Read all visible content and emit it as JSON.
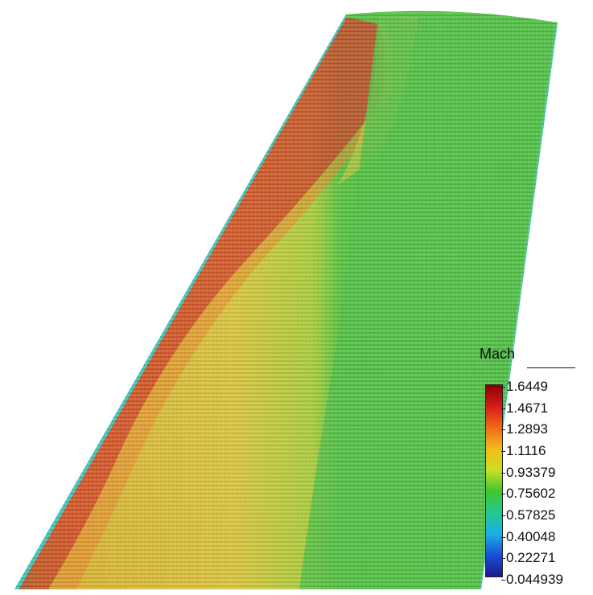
{
  "legend": {
    "title": "Mach",
    "ticks": [
      "1.6449",
      "1.4671",
      "1.2893",
      "1.1116",
      "0.93379",
      "0.75602",
      "0.57825",
      "0.40048",
      "0.22271",
      "0.044939"
    ],
    "color_stops": [
      "#8b0000",
      "#d81b1b",
      "#f06a17",
      "#f3bb1d",
      "#c9e01e",
      "#3fc52f",
      "#23c98f",
      "#1ab0e6",
      "#1a4fd8",
      "#1a1a8a"
    ]
  },
  "colors": {
    "supersonic_red": "#cf3a22",
    "transonic_yellow": "#d6c23a",
    "subsonic_green": "#52c140",
    "edge_cyan": "#3fc8c8",
    "background": "#ffffff"
  }
}
